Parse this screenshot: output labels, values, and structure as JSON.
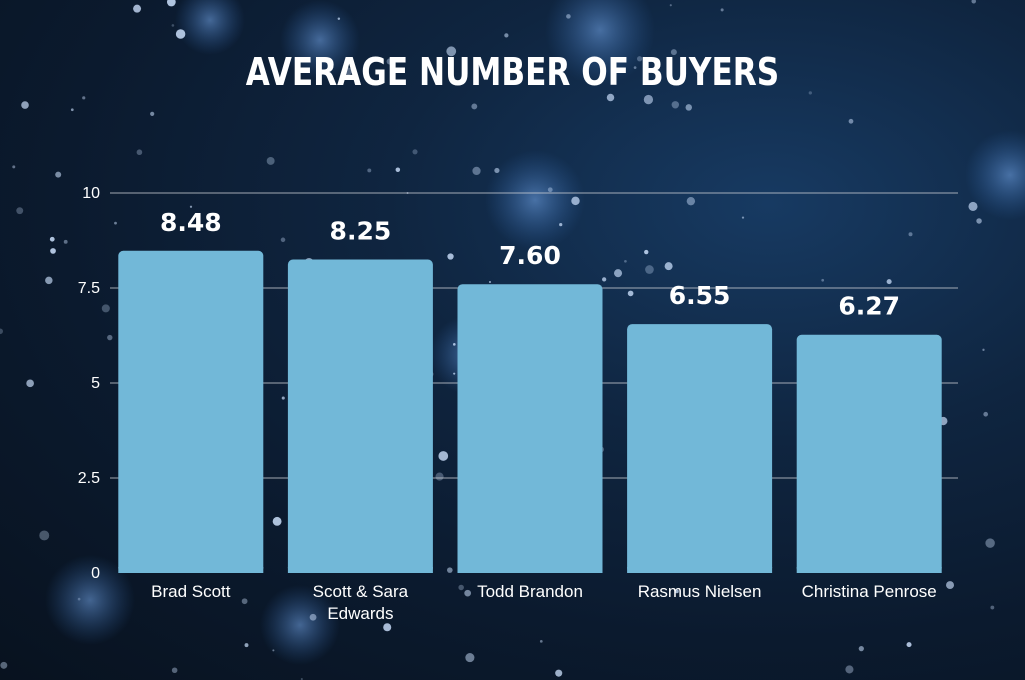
{
  "chart_data": {
    "type": "bar",
    "title": "AVERAGE NUMBER OF BUYERS",
    "xlabel": "",
    "ylabel": "",
    "categories": [
      [
        "Brad Scott"
      ],
      [
        "Scott & Sara",
        "Edwards"
      ],
      [
        "Todd Brandon"
      ],
      [
        "Rasmus Nielsen"
      ],
      [
        "Christina Penrose"
      ]
    ],
    "values": [
      8.48,
      8.25,
      7.6,
      6.55,
      6.27
    ],
    "value_labels": [
      "8.48",
      "8.25",
      "7.60",
      "6.55",
      "6.27"
    ],
    "yticks": [
      0,
      2.5,
      5,
      7.5,
      10
    ],
    "ytick_labels": [
      "0",
      "2.5",
      "5",
      "7.5",
      "10"
    ],
    "ylim": [
      0,
      10
    ],
    "grid": true,
    "legend": "none",
    "colors": {
      "bar": "#72b8d8",
      "gridline": "#c8ccd2",
      "text": "#ffffff"
    }
  }
}
